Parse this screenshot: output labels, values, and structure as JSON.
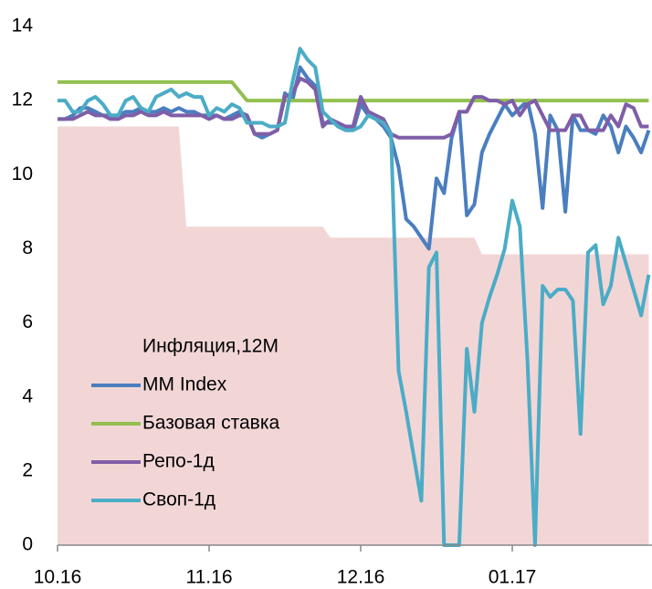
{
  "chart_data": {
    "type": "line",
    "categories": [
      "10.16",
      null,
      null,
      null,
      null,
      null,
      null,
      null,
      null,
      null,
      null,
      null,
      null,
      null,
      null,
      null,
      null,
      null,
      null,
      null,
      "11.16",
      null,
      null,
      null,
      null,
      null,
      null,
      null,
      null,
      null,
      null,
      null,
      null,
      null,
      null,
      null,
      null,
      null,
      null,
      null,
      "12.16",
      null,
      null,
      null,
      null,
      null,
      null,
      null,
      null,
      null,
      null,
      null,
      null,
      null,
      null,
      null,
      null,
      null,
      null,
      null,
      "01.17",
      null,
      null,
      null,
      null,
      null,
      null,
      null,
      null,
      null,
      null,
      null,
      null,
      null,
      null,
      null,
      null,
      null,
      null
    ],
    "ylim": [
      0,
      14
    ],
    "yticks": [
      0,
      2,
      4,
      6,
      8,
      10,
      12,
      14
    ],
    "grid": false,
    "legend": "lower left",
    "series": [
      {
        "name": "Инфляция,12М",
        "type": "area",
        "color": "#f2d6d6",
        "values": [
          11.3,
          11.3,
          11.3,
          11.3,
          11.3,
          11.3,
          11.3,
          11.3,
          11.3,
          11.3,
          11.3,
          11.3,
          11.3,
          11.3,
          11.3,
          11.3,
          11.3,
          8.6,
          8.6,
          8.6,
          8.6,
          8.6,
          8.6,
          8.6,
          8.6,
          8.6,
          8.6,
          8.6,
          8.6,
          8.6,
          8.6,
          8.6,
          8.6,
          8.6,
          8.6,
          8.6,
          8.3,
          8.3,
          8.3,
          8.3,
          8.3,
          8.3,
          8.3,
          8.3,
          8.3,
          8.3,
          8.3,
          8.3,
          8.3,
          8.3,
          8.3,
          8.3,
          8.3,
          8.3,
          8.3,
          8.3,
          7.85,
          7.85,
          7.85,
          7.85,
          7.85,
          7.85,
          7.85,
          7.85,
          7.85,
          7.85,
          7.85,
          7.85,
          7.85,
          7.85,
          7.85,
          7.85,
          7.85,
          7.85,
          7.85,
          7.85,
          7.85,
          7.85,
          7.85
        ]
      },
      {
        "name": "MM Index",
        "type": "line",
        "color": "#4a7ebf",
        "values": [
          11.5,
          11.5,
          11.6,
          11.8,
          11.8,
          11.7,
          11.6,
          11.6,
          11.6,
          11.7,
          11.7,
          11.8,
          11.7,
          11.7,
          11.8,
          11.7,
          11.8,
          11.7,
          11.7,
          11.6,
          11.6,
          11.6,
          11.5,
          11.6,
          11.7,
          11.6,
          11.1,
          11.0,
          11.1,
          11.2,
          12.2,
          12.0,
          12.9,
          12.6,
          12.4,
          11.4,
          11.4,
          11.4,
          11.2,
          11.2,
          11.9,
          11.6,
          11.5,
          11.3,
          11.0,
          10.2,
          8.8,
          8.6,
          8.3,
          8.0,
          9.9,
          9.5,
          11.0,
          11.7,
          8.9,
          9.2,
          10.6,
          11.1,
          11.5,
          11.9,
          11.6,
          11.8,
          12.0,
          11.1,
          9.1,
          11.6,
          11.2,
          9.0,
          11.6,
          11.2,
          11.2,
          11.1,
          11.6,
          11.3,
          10.6,
          11.3,
          11.0,
          10.6,
          11.2
        ]
      },
      {
        "name": "Базовая ставка",
        "type": "line",
        "color": "#92c050",
        "values": [
          12.5,
          12.5,
          12.5,
          12.5,
          12.5,
          12.5,
          12.5,
          12.5,
          12.5,
          12.5,
          12.5,
          12.5,
          12.5,
          12.5,
          12.5,
          12.5,
          12.5,
          12.5,
          12.5,
          12.5,
          12.5,
          12.5,
          12.5,
          12.5,
          12.25,
          12,
          12,
          12,
          12,
          12,
          12,
          12,
          12,
          12,
          12,
          12,
          12,
          12,
          12,
          12,
          12,
          12,
          12,
          12,
          12,
          12,
          12,
          12,
          12,
          12,
          12,
          12,
          12,
          12,
          12,
          12,
          12,
          12,
          12,
          12,
          12,
          12,
          12,
          12,
          12,
          12,
          12,
          12,
          12,
          12,
          12,
          12,
          12,
          12,
          12,
          12,
          12,
          12,
          12
        ]
      },
      {
        "name": "Репо-1д",
        "type": "line",
        "color": "#7f5ea8",
        "values": [
          11.5,
          11.5,
          11.5,
          11.6,
          11.7,
          11.6,
          11.6,
          11.5,
          11.5,
          11.6,
          11.6,
          11.7,
          11.6,
          11.6,
          11.7,
          11.6,
          11.6,
          11.6,
          11.6,
          11.6,
          11.5,
          11.6,
          11.5,
          11.5,
          11.6,
          11.6,
          11.1,
          11.1,
          11.1,
          11.2,
          12.1,
          12.2,
          12.6,
          12.5,
          12.3,
          11.3,
          11.5,
          11.4,
          11.3,
          11.3,
          12.1,
          11.7,
          11.6,
          11.5,
          11.1,
          11.0,
          11.0,
          11.0,
          11.0,
          11.0,
          11.0,
          11.0,
          11.1,
          11.7,
          11.7,
          12.1,
          12.1,
          12.0,
          12.0,
          11.9,
          12.0,
          11.6,
          11.9,
          12.0,
          11.6,
          11.2,
          11.2,
          11.2,
          11.6,
          11.6,
          11.2,
          11.2,
          11.2,
          11.6,
          11.3,
          11.9,
          11.8,
          11.3,
          11.3
        ]
      },
      {
        "name": "Своп-1д",
        "type": "line",
        "color": "#4bacc6",
        "values": [
          12.0,
          12.0,
          11.7,
          11.7,
          12.0,
          12.1,
          11.9,
          11.6,
          11.6,
          12.0,
          12.1,
          11.8,
          11.7,
          12.1,
          12.2,
          12.3,
          12.1,
          12.2,
          12.1,
          12.1,
          11.6,
          11.8,
          11.7,
          11.9,
          11.8,
          11.4,
          11.4,
          11.4,
          11.3,
          11.3,
          11.4,
          12.5,
          13.4,
          13.1,
          12.9,
          11.7,
          11.5,
          11.3,
          11.2,
          11.2,
          11.3,
          11.6,
          11.5,
          11.4,
          11.1,
          4.7,
          3.6,
          2.4,
          1.2,
          7.5,
          7.9,
          0,
          0,
          0,
          5.3,
          3.6,
          6.0,
          6.7,
          7.3,
          8.0,
          9.3,
          8.6,
          5.0,
          0,
          7.0,
          6.7,
          6.9,
          6.9,
          6.6,
          3.0,
          7.9,
          8.1,
          6.5,
          7.0,
          8.3,
          7.6,
          6.9,
          6.2,
          7.3
        ]
      }
    ]
  }
}
